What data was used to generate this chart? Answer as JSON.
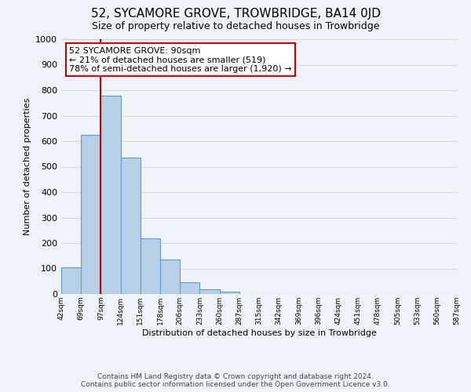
{
  "title": "52, SYCAMORE GROVE, TROWBRIDGE, BA14 0JD",
  "subtitle": "Size of property relative to detached houses in Trowbridge",
  "xlabel": "Distribution of detached houses by size in Trowbridge",
  "ylabel": "Number of detached properties",
  "tick_labels": [
    "42sqm",
    "69sqm",
    "97sqm",
    "124sqm",
    "151sqm",
    "178sqm",
    "206sqm",
    "233sqm",
    "260sqm",
    "287sqm",
    "315sqm",
    "342sqm",
    "369sqm",
    "396sqm",
    "424sqm",
    "451sqm",
    "478sqm",
    "505sqm",
    "533sqm",
    "560sqm",
    "587sqm"
  ],
  "bar_heights": [
    105,
    625,
    780,
    535,
    220,
    135,
    45,
    18,
    10,
    0,
    0,
    0,
    0,
    0,
    0,
    0,
    0,
    0,
    0,
    0
  ],
  "ylim": [
    0,
    1000
  ],
  "yticks": [
    0,
    100,
    200,
    300,
    400,
    500,
    600,
    700,
    800,
    900,
    1000
  ],
  "bar_color": "#b8cfe8",
  "bar_edgecolor": "#6699cc",
  "bar_linewidth": 0.8,
  "grid_color": "#d0d8e8",
  "property_line_color": "#cc0000",
  "property_bin_idx": 1,
  "annotation_line1": "52 SYCAMORE GROVE: 90sqm",
  "annotation_line2": "← 21% of detached houses are smaller (519)",
  "annotation_line3": "78% of semi-detached houses are larger (1,920) →",
  "annotation_box_facecolor": "white",
  "annotation_box_edgecolor": "#cc0000",
  "annotation_fontsize": 8.0,
  "background_color": "#f0f4fa",
  "axes_background_color": "#f0f4fa",
  "title_fontsize": 11,
  "subtitle_fontsize": 9,
  "ylabel_fontsize": 8,
  "xlabel_fontsize": 8,
  "footer_line1": "Contains HM Land Registry data © Crown copyright and database right 2024.",
  "footer_line2": "Contains public sector information licensed under the Open Government Licence v3.0.",
  "footer_fontsize": 6.5
}
